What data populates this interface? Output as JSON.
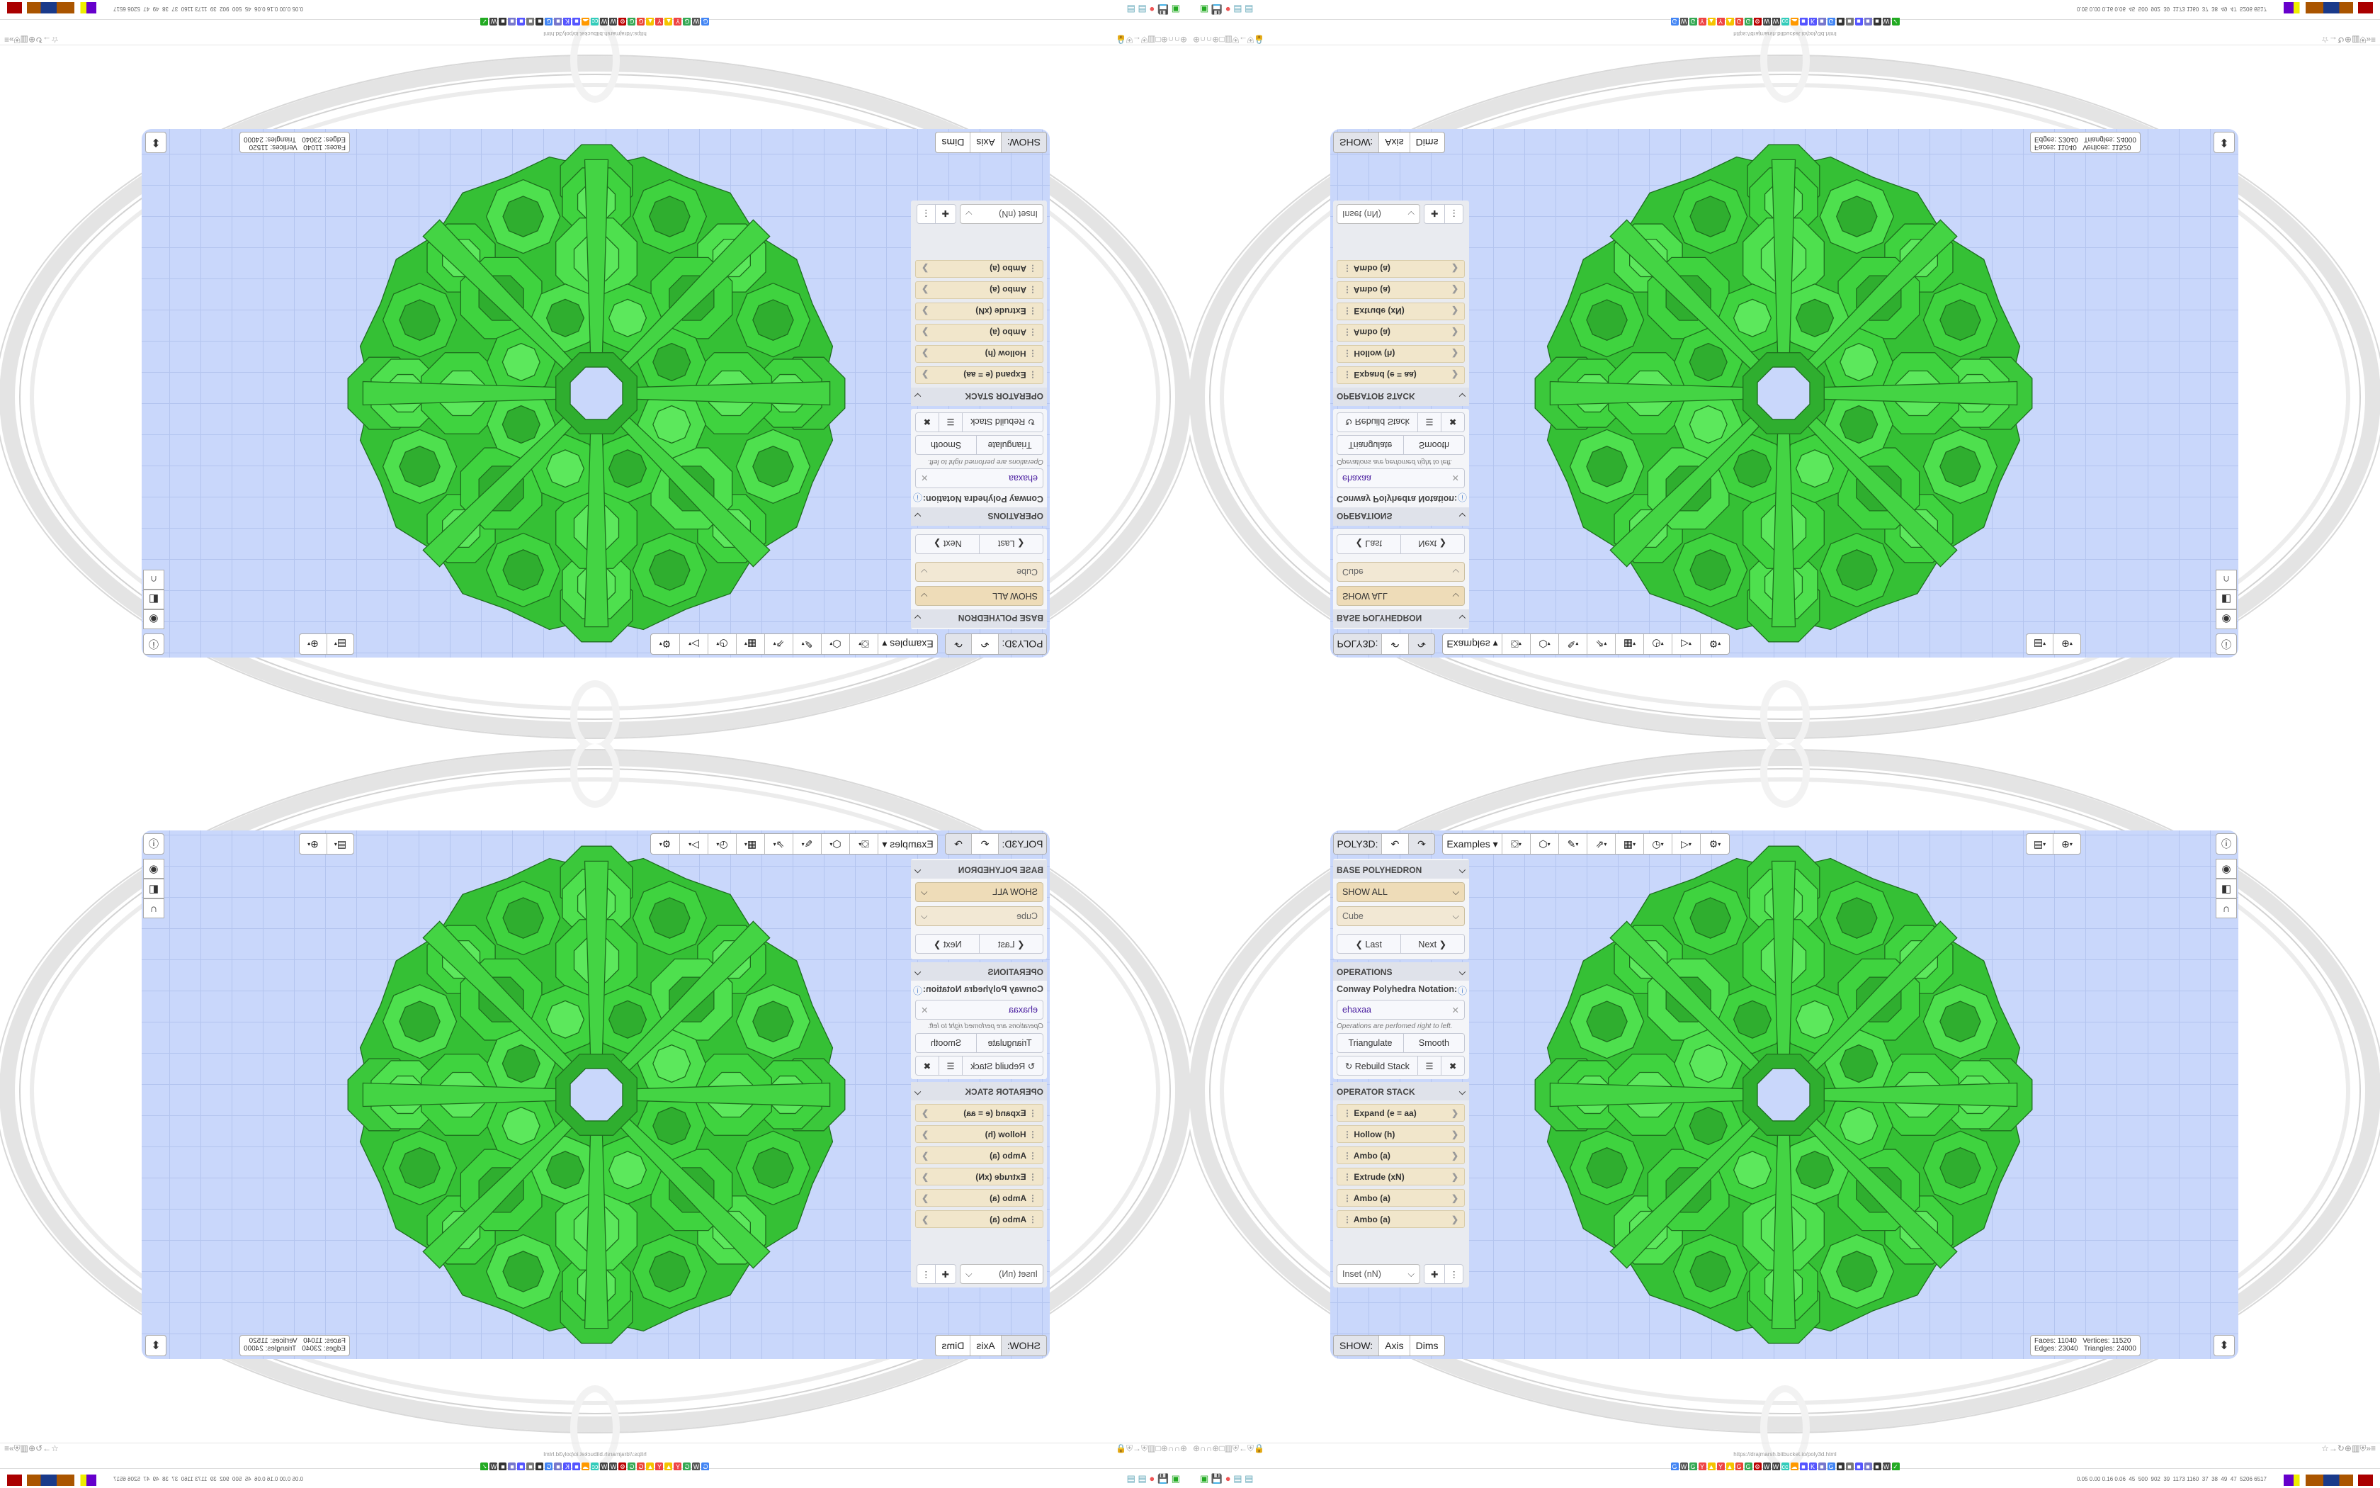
{
  "toolbar": {
    "app_label": "POLY3D:",
    "undo_icon": "undo-icon",
    "redo_icon": "redo-icon",
    "examples_label": "Examples ▾",
    "tools": [
      {
        "icon": "paint-bucket-icon",
        "glyph": "⛋"
      },
      {
        "icon": "cube-icon",
        "glyph": "⬡"
      },
      {
        "icon": "edit-lines-icon",
        "glyph": "✎"
      },
      {
        "icon": "export-icon",
        "glyph": "⇗"
      },
      {
        "icon": "table-icon",
        "glyph": "▦"
      },
      {
        "icon": "clock-icon",
        "glyph": "◷"
      },
      {
        "icon": "play-icon",
        "glyph": "▷"
      },
      {
        "icon": "settings-icon",
        "glyph": "⚙"
      }
    ],
    "right_tools": [
      {
        "icon": "calendar-clock-icon",
        "glyph": "▤"
      },
      {
        "icon": "globe-icon",
        "glyph": "⊕"
      }
    ],
    "info_icon": "info-icon"
  },
  "sidebar": {
    "base": {
      "title": "BASE POLYHEDRON",
      "filter": "SHOW ALL",
      "shape": "Cube",
      "last": "❮ Last",
      "next": "Next ❯"
    },
    "operations": {
      "title": "OPERATIONS",
      "notation_label": "Conway Polyhedra Notation:",
      "notation_value": "ehaxaa",
      "hint": "Operations are perfomed right to left.",
      "triangulate": "Triangulate",
      "smooth": "Smooth",
      "rebuild": "↻ Rebuild Stack"
    },
    "stack": {
      "title": "OPERATOR STACK",
      "items": [
        "Expand (e = aa)",
        "Hollow (h)",
        "Ambo (a)",
        "Extrude (xN)",
        "Ambo (a)",
        "Ambo (a)"
      ],
      "add_select": "Inset (nN)"
    }
  },
  "view_tools": [
    {
      "icon": "eye-icon",
      "glyph": "◉"
    },
    {
      "icon": "half-square-icon",
      "glyph": "◧"
    },
    {
      "icon": "magnet-icon",
      "glyph": "∩"
    }
  ],
  "show": {
    "label": "SHOW:",
    "axis": "Axis",
    "dims": "Dims"
  },
  "stats": {
    "line1": "Faces: 11040   Vertices: 11520",
    "line2": "Edges: 23040   Triangles: 24000"
  },
  "browser": {
    "url": "https://drajmarsh.bitbucket.io/poly3d.html",
    "status": "0.05 0.00 0.16 0.06  45  500  902  39  1173 1160  37  38  49  47  5206 6517",
    "favicons": [
      "G",
      "W",
      "G",
      "Y",
      "▲",
      "Y",
      "▲",
      "G",
      "G",
      "⚙",
      "W",
      "W",
      "cc",
      "☁",
      "■",
      "K",
      "■",
      "G",
      "■",
      "■",
      "■",
      "■",
      "■",
      "W",
      "✓"
    ],
    "favicon_colors": [
      "#4285f4",
      "#555",
      "#34a853",
      "#e44",
      "#f5c400",
      "#e44",
      "#f5c400",
      "#ea4335",
      "#34a853",
      "#b00",
      "#444",
      "#444",
      "#3cb",
      "#f90",
      "#55f",
      "#55f",
      "#77c",
      "#4285f4",
      "#333",
      "#777",
      "#55f",
      "#77c",
      "#333",
      "#444",
      "#2a2"
    ]
  },
  "colors": {
    "viewport": "#c9d7fb",
    "polyhedron_fill": "#3fd33f",
    "polyhedron_stroke": "#1e6e1e",
    "stack_item": "#f1e6cb"
  }
}
